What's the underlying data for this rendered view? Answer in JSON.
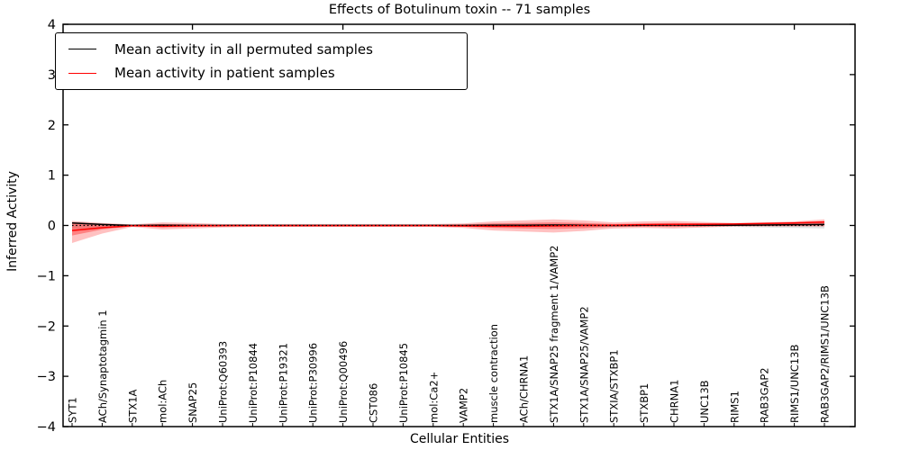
{
  "figure": {
    "title": "Effects of Botulinum toxin -- 71 samples",
    "xlabel": "Cellular Entities",
    "ylabel": "Inferred Activity"
  },
  "legend": {
    "position": "upper left",
    "items": [
      {
        "name": "permuted-mean",
        "label": "Mean activity in all permuted samples",
        "color": "#000000"
      },
      {
        "name": "patient-mean",
        "label": "Mean activity in patient samples",
        "color": "#ff0000"
      }
    ]
  },
  "chart_data": {
    "type": "line",
    "title": "Effects of Botulinum toxin -- 71 samples",
    "xlabel": "Cellular Entities",
    "ylabel": "Inferred Activity",
    "ylim": [
      -4,
      4
    ],
    "yticks": [
      -4,
      -3,
      -2,
      -1,
      0,
      1,
      2,
      3,
      4
    ],
    "grid": false,
    "legend_position": "upper left",
    "categories": [
      "SYT1",
      "ACh/Synaptotagmin 1",
      "STX1A",
      "mol:ACh",
      "SNAP25",
      "UniProt:Q60393",
      "UniProt:P10844",
      "UniProt:P19321",
      "UniProt:P30996",
      "UniProt:Q00496",
      "CST086",
      "UniProt:P10845",
      "mol:Ca2+",
      "VAMP2",
      "muscle contraction",
      "ACh/CHRNA1",
      "STX1A/SNAP25 fragment 1/VAMP2",
      "STX1A/SNAP25/VAMP2",
      "STXIA/STXBP1",
      "STXBP1",
      "CHRNA1",
      "UNC13B",
      "RIMS1",
      "RAB3GAP2",
      "RIMS1/UNC13B",
      "RAB3GAP2/RIMS1/UNC13B"
    ],
    "series": [
      {
        "name": "Mean activity in all permuted samples",
        "color": "#000000",
        "style": "solid",
        "width": 1.5,
        "values": [
          0.05,
          0.02,
          0.0,
          0.005,
          0.0,
          0.0,
          0.0,
          0.0,
          0.0,
          0.0,
          0.0,
          0.0,
          0.0,
          0.0,
          0.005,
          0.005,
          0.01,
          0.005,
          0.0,
          0.005,
          0.01,
          0.005,
          0.005,
          0.01,
          0.015,
          0.02
        ]
      },
      {
        "name": "Mean activity in patient samples",
        "color": "#ff0000",
        "style": "solid",
        "width": 1.5,
        "values": [
          -0.1,
          -0.045,
          -0.005,
          -0.015,
          -0.005,
          -0.005,
          -0.005,
          -0.005,
          -0.005,
          -0.005,
          -0.005,
          -0.005,
          -0.005,
          -0.01,
          -0.015,
          -0.015,
          -0.01,
          0.0,
          0.005,
          0.015,
          0.02,
          0.025,
          0.03,
          0.04,
          0.05,
          0.07
        ]
      },
      {
        "name": "zero reference",
        "color": "#000000",
        "style": "dotted",
        "width": 1.2,
        "values": [
          0,
          0,
          0,
          0,
          0,
          0,
          0,
          0,
          0,
          0,
          0,
          0,
          0,
          0,
          0,
          0,
          0,
          0,
          0,
          0,
          0,
          0,
          0,
          0,
          0,
          0
        ]
      }
    ],
    "bands": [
      {
        "name": "permuted-range-band",
        "color": "#aaaaaa",
        "opacity": 0.35,
        "lower": [
          -0.07,
          -0.04,
          -0.02,
          -0.02,
          -0.02,
          -0.02,
          -0.02,
          -0.02,
          -0.02,
          -0.02,
          -0.02,
          -0.02,
          -0.02,
          -0.02,
          -0.03,
          -0.03,
          -0.03,
          -0.03,
          -0.02,
          -0.03,
          -0.03,
          -0.03,
          -0.03,
          -0.04,
          -0.05,
          -0.06
        ],
        "upper": [
          0.07,
          0.04,
          0.02,
          0.02,
          0.02,
          0.02,
          0.02,
          0.02,
          0.02,
          0.02,
          0.02,
          0.02,
          0.02,
          0.02,
          0.03,
          0.03,
          0.03,
          0.03,
          0.02,
          0.03,
          0.03,
          0.03,
          0.03,
          0.04,
          0.04,
          0.05
        ]
      },
      {
        "name": "patient-outer-band",
        "color": "#ff4c4c",
        "opacity": 0.35,
        "lower": [
          -0.35,
          -0.16,
          -0.03,
          -0.08,
          -0.06,
          -0.04,
          -0.03,
          -0.03,
          -0.03,
          -0.03,
          -0.03,
          -0.03,
          -0.03,
          -0.05,
          -0.1,
          -0.12,
          -0.14,
          -0.11,
          -0.06,
          -0.05,
          -0.06,
          -0.04,
          -0.02,
          -0.02,
          -0.02,
          -0.02
        ],
        "upper": [
          0.09,
          0.05,
          0.02,
          0.06,
          0.05,
          0.03,
          0.03,
          0.03,
          0.03,
          0.03,
          0.03,
          0.03,
          0.03,
          0.04,
          0.08,
          0.1,
          0.12,
          0.1,
          0.06,
          0.08,
          0.09,
          0.07,
          0.05,
          0.06,
          0.08,
          0.12
        ]
      },
      {
        "name": "patient-inner-band",
        "color": "#ff3333",
        "opacity": 0.45,
        "lower": [
          -0.2,
          -0.08,
          -0.015,
          -0.04,
          -0.03,
          -0.02,
          -0.015,
          -0.015,
          -0.015,
          -0.015,
          -0.015,
          -0.015,
          -0.015,
          -0.025,
          -0.05,
          -0.06,
          -0.07,
          -0.055,
          -0.03,
          -0.025,
          -0.03,
          -0.02,
          -0.01,
          -0.01,
          -0.005,
          0.0
        ],
        "upper": [
          0.04,
          0.02,
          0.01,
          0.03,
          0.02,
          0.015,
          0.015,
          0.015,
          0.015,
          0.015,
          0.015,
          0.015,
          0.015,
          0.02,
          0.04,
          0.05,
          0.06,
          0.05,
          0.03,
          0.04,
          0.05,
          0.04,
          0.03,
          0.04,
          0.05,
          0.08
        ]
      }
    ],
    "top_tick_category_indices": [
      4,
      9,
      14,
      19,
      24
    ]
  }
}
